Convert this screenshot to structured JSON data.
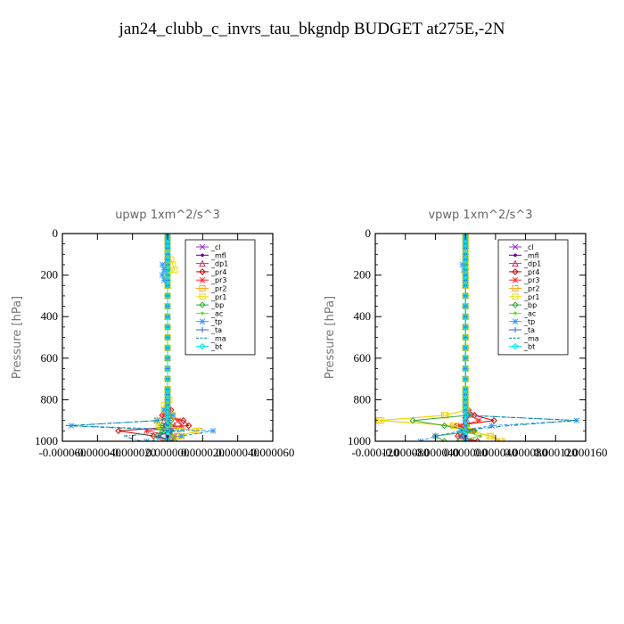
{
  "title": "jan24_clubb_c_invrs_tau_bkgndp  BUDGET at275E,-2N",
  "chart_data": [
    {
      "type": "line",
      "title": "upwp   1xm^2/s^3",
      "ylabel": "Pressure [hPa]",
      "y_axis_reversed": true,
      "ylim": [
        1000,
        0
      ],
      "y_ticks": [
        0,
        200,
        400,
        600,
        800,
        1000
      ],
      "xlim": [
        -6e-05,
        6e-05
      ],
      "x_tick_labels": [
        "-0.000060",
        "-0.000040",
        "-0.000020",
        "0.000000",
        "0.000020",
        "0.000040",
        "0.000060"
      ],
      "x_tick_values": [
        -6e-05,
        -4e-05,
        -2e-05,
        0,
        2e-05,
        4e-05,
        6e-05
      ],
      "legend_position": "top-right",
      "levels": [
        1000,
        975,
        950,
        925,
        900,
        875,
        850,
        825,
        800,
        775,
        750,
        700,
        650,
        600,
        550,
        500,
        450,
        400,
        350,
        300,
        250,
        225,
        200,
        175,
        150,
        125,
        100,
        70,
        50,
        30,
        20,
        10
      ],
      "series": [
        {
          "name": "_cl",
          "color": "#9933cc",
          "marker": "cross",
          "values": [
            0,
            0,
            0,
            0,
            0,
            0,
            0,
            0,
            0,
            0,
            0,
            0,
            0,
            0,
            0,
            0,
            0,
            0,
            0,
            0,
            0,
            0,
            0,
            0,
            0,
            0,
            0,
            0,
            0,
            0,
            0,
            0
          ]
        },
        {
          "name": "_mfl",
          "color": "#660099",
          "marker": "dot",
          "values": [
            0,
            0,
            0,
            0,
            0,
            0,
            0,
            0,
            0,
            0,
            0,
            0,
            0,
            0,
            0,
            0,
            0,
            0,
            0,
            0,
            0,
            0,
            0,
            0,
            0,
            0,
            0,
            0,
            0,
            0,
            0,
            0
          ]
        },
        {
          "name": "_dp1",
          "color": "#cc3366",
          "marker": "triangle",
          "values": [
            3e-06,
            2e-06,
            -3e-06,
            4e-06,
            -2e-06,
            1e-06,
            0,
            0,
            0,
            0,
            0,
            0,
            0,
            0,
            0,
            0,
            0,
            0,
            0,
            0,
            0,
            0,
            0,
            0,
            0,
            0,
            0,
            0,
            0,
            0,
            0,
            0
          ]
        },
        {
          "name": "_pr4",
          "color": "#cc0000",
          "marker": "diamond",
          "values": [
            4e-06,
            -8e-06,
            -2.8e-05,
            1.2e-05,
            9e-06,
            -3e-06,
            2e-06,
            0,
            0,
            0,
            0,
            0,
            0,
            0,
            0,
            0,
            0,
            0,
            0,
            0,
            0,
            0,
            0,
            0,
            0,
            0,
            0,
            0,
            0,
            0,
            0,
            0
          ]
        },
        {
          "name": "_pr3",
          "color": "#ff3333",
          "marker": "star",
          "values": [
            -3e-06,
            4e-06,
            -1.2e-05,
            8e-06,
            6e-06,
            -2e-06,
            1e-06,
            0,
            0,
            0,
            0,
            0,
            0,
            0,
            0,
            0,
            0,
            0,
            0,
            0,
            0,
            0,
            0,
            0,
            0,
            0,
            0,
            0,
            0,
            0,
            0,
            0
          ]
        },
        {
          "name": "_pr2",
          "color": "#ffaa22",
          "marker": "square",
          "values": [
            2e-06,
            6e-06,
            1.8e-05,
            -4e-06,
            -6e-06,
            2e-06,
            -1e-06,
            0,
            0,
            0,
            0,
            0,
            0,
            0,
            0,
            0,
            0,
            0,
            0,
            0,
            0,
            0,
            0,
            0,
            0,
            0,
            0,
            0,
            0,
            0,
            0,
            0
          ]
        },
        {
          "name": "_pr1",
          "color": "#eedd00",
          "marker": "square",
          "values": [
            2e-06,
            8e-06,
            1.6e-05,
            -5e-06,
            -6e-06,
            3e-06,
            -2e-06,
            -2e-06,
            1e-06,
            0,
            0,
            0,
            0,
            0,
            0,
            0,
            0,
            0,
            0,
            0,
            0,
            0,
            0,
            4e-06,
            3e-06,
            2e-06,
            0,
            0,
            0,
            0,
            0,
            0
          ]
        },
        {
          "name": "_bp",
          "color": "#33aa33",
          "marker": "diamond",
          "values": [
            4e-06,
            -6e-06,
            2e-06,
            -3e-06,
            2e-06,
            0,
            0,
            0,
            0,
            0,
            0,
            0,
            0,
            0,
            0,
            0,
            0,
            0,
            0,
            0,
            0,
            0,
            0,
            0,
            0,
            0,
            0,
            0,
            0,
            0,
            0,
            0
          ]
        },
        {
          "name": "_ac",
          "color": "#66dd33",
          "marker": "dot",
          "values": [
            -2e-06,
            3e-06,
            -4e-06,
            2e-06,
            0,
            0,
            0,
            0,
            0,
            0,
            0,
            0,
            0,
            0,
            0,
            0,
            0,
            0,
            0,
            0,
            0,
            0,
            0,
            0,
            0,
            0,
            0,
            0,
            0,
            0,
            0,
            0
          ]
        },
        {
          "name": "_tp",
          "color": "#3399ff",
          "marker": "star",
          "values": [
            -1.2e-05,
            8e-06,
            2.6e-05,
            -5.5e-05,
            -6e-06,
            3e-06,
            -2e-06,
            0,
            0,
            0,
            0,
            0,
            0,
            0,
            0,
            0,
            0,
            0,
            0,
            0,
            0,
            -2e-06,
            -3e-06,
            -2e-06,
            -3e-06,
            0,
            0,
            0,
            0,
            0,
            0,
            0
          ]
        },
        {
          "name": "_ta",
          "color": "#3366cc",
          "marker": "plus",
          "values": [
            3e-06,
            -5e-06,
            2e-06,
            -2e-06,
            1e-06,
            0,
            0,
            0,
            0,
            0,
            0,
            0,
            0,
            0,
            0,
            0,
            0,
            0,
            0,
            0,
            0,
            0,
            0,
            0,
            0,
            0,
            0,
            0,
            0,
            0,
            0,
            0
          ]
        },
        {
          "name": "_ma",
          "color": "#008888",
          "marker": "none",
          "values": [
            -1.5e-05,
            -2.5e-05,
            1e-05,
            -5.8e-05,
            -4e-06,
            2e-06,
            -1e-06,
            0,
            0,
            0,
            0,
            0,
            0,
            0,
            0,
            0,
            0,
            0,
            0,
            0,
            0,
            0,
            0,
            0,
            0,
            0,
            0,
            0,
            0,
            0,
            0,
            0
          ]
        },
        {
          "name": "_bt",
          "color": "#00e5ee",
          "marker": "diamond",
          "values": [
            0,
            0,
            0,
            0,
            0,
            0,
            0,
            0,
            0,
            0,
            0,
            0,
            0,
            0,
            0,
            0,
            0,
            0,
            0,
            0,
            0,
            0,
            0,
            0,
            0,
            0,
            0,
            0,
            0,
            0,
            0,
            0
          ]
        }
      ]
    },
    {
      "type": "line",
      "title": "vpwp   1xm^2/s^3",
      "ylabel": "Pressure [hPa]",
      "y_axis_reversed": true,
      "ylim": [
        1000,
        0
      ],
      "y_ticks": [
        0,
        200,
        400,
        600,
        800,
        1000
      ],
      "xlim": [
        -0.00012,
        0.00016
      ],
      "x_tick_labels": [
        "-0.000120",
        "-0.000080",
        "-0.000040",
        "0.000000",
        "0.000040",
        "0.000080",
        "0.000120",
        "0.000160"
      ],
      "x_tick_values": [
        -0.00012,
        -8e-05,
        -4e-05,
        0,
        4e-05,
        8e-05,
        0.00012,
        0.00016
      ],
      "legend_position": "top-right",
      "levels": [
        1000,
        975,
        950,
        925,
        900,
        875,
        850,
        825,
        800,
        775,
        750,
        700,
        650,
        600,
        550,
        500,
        450,
        400,
        350,
        300,
        250,
        225,
        200,
        175,
        150,
        125,
        100,
        70,
        50,
        30,
        20,
        10
      ],
      "series": [
        {
          "name": "_cl",
          "color": "#9933cc",
          "marker": "cross",
          "values": [
            0,
            0,
            0,
            0,
            0,
            0,
            0,
            0,
            0,
            0,
            0,
            0,
            0,
            0,
            0,
            0,
            0,
            0,
            0,
            0,
            0,
            0,
            0,
            0,
            0,
            0,
            0,
            0,
            0,
            0,
            0,
            0
          ]
        },
        {
          "name": "_mfl",
          "color": "#660099",
          "marker": "dot",
          "values": [
            0,
            0,
            0,
            0,
            0,
            0,
            0,
            0,
            0,
            0,
            0,
            0,
            0,
            0,
            0,
            0,
            0,
            0,
            0,
            0,
            0,
            0,
            0,
            0,
            0,
            0,
            0,
            0,
            0,
            0,
            0,
            0
          ]
        },
        {
          "name": "_dp1",
          "color": "#cc3366",
          "marker": "triangle",
          "values": [
            6e-06,
            -4e-06,
            4e-06,
            -3e-06,
            2e-06,
            0,
            0,
            0,
            0,
            0,
            0,
            0,
            0,
            0,
            0,
            0,
            0,
            0,
            0,
            0,
            0,
            0,
            0,
            0,
            0,
            0,
            0,
            0,
            0,
            0,
            0,
            0
          ]
        },
        {
          "name": "_pr4",
          "color": "#cc0000",
          "marker": "diamond",
          "values": [
            1.6e-05,
            -1e-05,
            1e-05,
            -1.2e-05,
            3.8e-05,
            1.2e-05,
            4e-06,
            0,
            0,
            0,
            0,
            0,
            0,
            0,
            0,
            0,
            0,
            0,
            0,
            0,
            0,
            0,
            0,
            0,
            0,
            0,
            0,
            0,
            0,
            0,
            0,
            0
          ]
        },
        {
          "name": "_pr3",
          "color": "#ff3333",
          "marker": "star",
          "values": [
            8e-06,
            -6e-06,
            4e-06,
            -6e-06,
            1.8e-05,
            6e-06,
            2e-06,
            0,
            0,
            0,
            0,
            0,
            0,
            0,
            0,
            0,
            0,
            0,
            0,
            0,
            0,
            0,
            0,
            0,
            0,
            0,
            0,
            0,
            0,
            0,
            0,
            0
          ]
        },
        {
          "name": "_pr2",
          "color": "#ffaa22",
          "marker": "square",
          "values": [
            4.8e-05,
            3.4e-05,
            6e-06,
            -1.6e-05,
            -0.000115,
            -2.8e-05,
            2e-06,
            0,
            0,
            0,
            0,
            0,
            0,
            0,
            0,
            0,
            0,
            0,
            0,
            0,
            0,
            0,
            0,
            0,
            0,
            0,
            0,
            0,
            0,
            0,
            0,
            0
          ]
        },
        {
          "name": "_pr1",
          "color": "#eedd00",
          "marker": "square",
          "values": [
            4.6e-05,
            3.2e-05,
            4e-06,
            -1.4e-05,
            -0.000112,
            -2.6e-05,
            0,
            0,
            0,
            0,
            0,
            0,
            0,
            0,
            0,
            0,
            0,
            0,
            0,
            0,
            0,
            0,
            0,
            0,
            0,
            0,
            0,
            0,
            0,
            0,
            0,
            0
          ]
        },
        {
          "name": "_bp",
          "color": "#33aa33",
          "marker": "diamond",
          "values": [
            -2.8e-05,
            -4e-05,
            1.2e-05,
            -2.8e-05,
            -7e-05,
            4e-06,
            0,
            0,
            0,
            0,
            0,
            0,
            0,
            0,
            0,
            0,
            0,
            0,
            0,
            0,
            0,
            0,
            0,
            0,
            0,
            0,
            0,
            0,
            0,
            0,
            0,
            0
          ]
        },
        {
          "name": "_ac",
          "color": "#66dd33",
          "marker": "dot",
          "values": [
            -1e-05,
            2e-05,
            -4e-06,
            4e-06,
            -2e-06,
            0,
            0,
            0,
            0,
            0,
            0,
            0,
            0,
            0,
            0,
            0,
            0,
            0,
            0,
            0,
            0,
            0,
            0,
            0,
            0,
            0,
            0,
            0,
            0,
            0,
            0,
            0
          ]
        },
        {
          "name": "_tp",
          "color": "#3399ff",
          "marker": "star",
          "values": [
            -6e-05,
            -4e-05,
            -6e-06,
            3.5e-05,
            0.000148,
            3e-06,
            0,
            0,
            0,
            0,
            0,
            0,
            0,
            0,
            0,
            0,
            0,
            0,
            0,
            0,
            0,
            0,
            0,
            -2e-06,
            -4e-06,
            0,
            0,
            0,
            0,
            0,
            0,
            0
          ]
        },
        {
          "name": "_ta",
          "color": "#3366cc",
          "marker": "plus",
          "values": [
            4e-06,
            -4e-06,
            3e-06,
            0,
            0,
            0,
            0,
            0,
            0,
            0,
            0,
            0,
            0,
            0,
            0,
            0,
            0,
            0,
            0,
            0,
            0,
            0,
            0,
            0,
            0,
            0,
            0,
            0,
            0,
            0,
            0,
            0
          ]
        },
        {
          "name": "_ma",
          "color": "#008888",
          "marker": "none",
          "values": [
            -1.2e-05,
            -6e-06,
            -1.2e-05,
            5.8e-05,
            0.000148,
            2e-06,
            0,
            0,
            0,
            0,
            0,
            0,
            0,
            0,
            0,
            0,
            0,
            0,
            0,
            0,
            0,
            0,
            0,
            0,
            0,
            0,
            0,
            0,
            0,
            0,
            0,
            0
          ]
        },
        {
          "name": "_bt",
          "color": "#00e5ee",
          "marker": "diamond",
          "values": [
            0,
            0,
            0,
            0,
            0,
            0,
            0,
            0,
            0,
            0,
            0,
            0,
            0,
            0,
            0,
            0,
            0,
            0,
            0,
            0,
            0,
            0,
            0,
            0,
            0,
            0,
            0,
            0,
            0,
            0,
            0,
            0
          ]
        }
      ]
    }
  ]
}
